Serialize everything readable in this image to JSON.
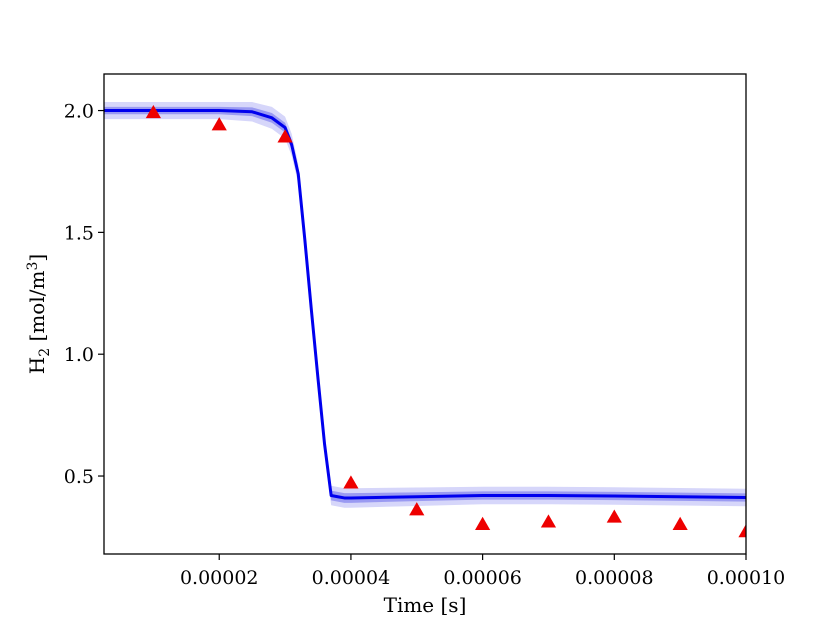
{
  "chart_data": {
    "type": "line",
    "title": "",
    "xlabel": "Time [s]",
    "ylabel": {
      "base": "H",
      "sub": "2",
      "unit_pre": " [mol/m",
      "unit_sup": "3",
      "unit_post": "]"
    },
    "xlim": [
      2.5e-06,
      0.0001
    ],
    "ylim": [
      0.18,
      2.15
    ],
    "x_ticks": [
      2e-05,
      4e-05,
      6e-05,
      8e-05,
      0.0001
    ],
    "x_tick_labels": [
      "0.00002",
      "0.00004",
      "0.00006",
      "0.00008",
      "0.00010"
    ],
    "y_ticks": [
      0.5,
      1.0,
      1.5,
      2.0
    ],
    "y_tick_labels": [
      "0.5",
      "1.0",
      "1.5",
      "2.0"
    ],
    "grid": false,
    "legend": "none",
    "series": [
      {
        "kind": "line",
        "color": "#0000ee",
        "band_inner_color": "#9a9af2",
        "band_outer_color": "#d6d6fa",
        "x": [
          2.5e-06,
          1e-05,
          2e-05,
          2.5e-05,
          2.8e-05,
          3e-05,
          3.1e-05,
          3.2e-05,
          3.3e-05,
          3.4e-05,
          3.5e-05,
          3.6e-05,
          3.7e-05,
          3.8e-05,
          3.9e-05,
          4e-05,
          5e-05,
          6e-05,
          7e-05,
          8e-05,
          9e-05,
          0.0001
        ],
        "y": [
          2.0,
          2.0,
          2.0,
          1.995,
          1.97,
          1.93,
          1.86,
          1.74,
          1.47,
          1.18,
          0.9,
          0.63,
          0.42,
          0.415,
          0.41,
          0.41,
          0.415,
          0.42,
          0.42,
          0.418,
          0.415,
          0.412
        ],
        "band_inner": [
          0.015,
          0.015,
          0.015,
          0.018,
          0.02,
          0.02,
          0.02,
          0.02,
          0.02,
          0.02,
          0.02,
          0.02,
          0.02,
          0.02,
          0.02,
          0.02,
          0.018,
          0.017,
          0.017,
          0.017,
          0.017,
          0.017
        ],
        "band_outer": [
          0.035,
          0.035,
          0.035,
          0.04,
          0.045,
          0.045,
          0.045,
          0.04,
          0.04,
          0.04,
          0.04,
          0.04,
          0.04,
          0.04,
          0.04,
          0.04,
          0.038,
          0.036,
          0.036,
          0.036,
          0.036,
          0.036
        ]
      },
      {
        "kind": "scatter",
        "marker": "triangle",
        "color": "#ee0000",
        "x": [
          1e-05,
          2e-05,
          3e-05,
          4e-05,
          5e-05,
          6e-05,
          7e-05,
          8e-05,
          9e-05,
          0.0001
        ],
        "y": [
          1.99,
          1.94,
          1.89,
          0.47,
          0.36,
          0.3,
          0.31,
          0.33,
          0.3,
          0.27
        ]
      }
    ]
  }
}
